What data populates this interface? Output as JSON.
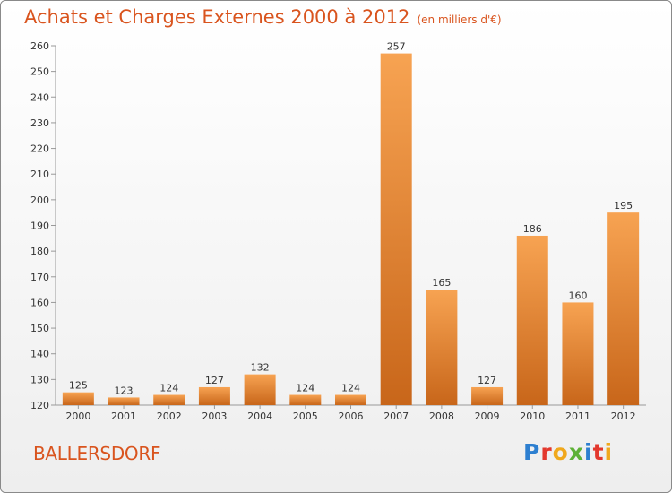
{
  "header": {
    "title": "Achats et Charges Externes 2000 à 2012",
    "unit": "(en milliers d'€)"
  },
  "footer": {
    "commune": "BALLERSDORF",
    "logo": "Proxiti"
  },
  "colors": {
    "accent": "#d9541e",
    "bar_light": "#f7a352",
    "bar_dark": "#c8661a"
  },
  "chart_data": {
    "type": "bar",
    "title": "Achats et Charges Externes 2000 à 2012",
    "subtitle": "(en milliers d'€)",
    "xlabel": "",
    "ylabel": "",
    "categories": [
      "2000",
      "2001",
      "2002",
      "2003",
      "2004",
      "2005",
      "2006",
      "2007",
      "2008",
      "2009",
      "2010",
      "2011",
      "2012"
    ],
    "values": [
      125,
      123,
      124,
      127,
      132,
      124,
      124,
      257,
      165,
      127,
      186,
      160,
      195
    ],
    "ylim": [
      120,
      260
    ],
    "yticks": [
      120,
      130,
      140,
      150,
      160,
      170,
      180,
      190,
      200,
      210,
      220,
      230,
      240,
      250,
      260
    ],
    "grid": false,
    "legend": "none"
  }
}
